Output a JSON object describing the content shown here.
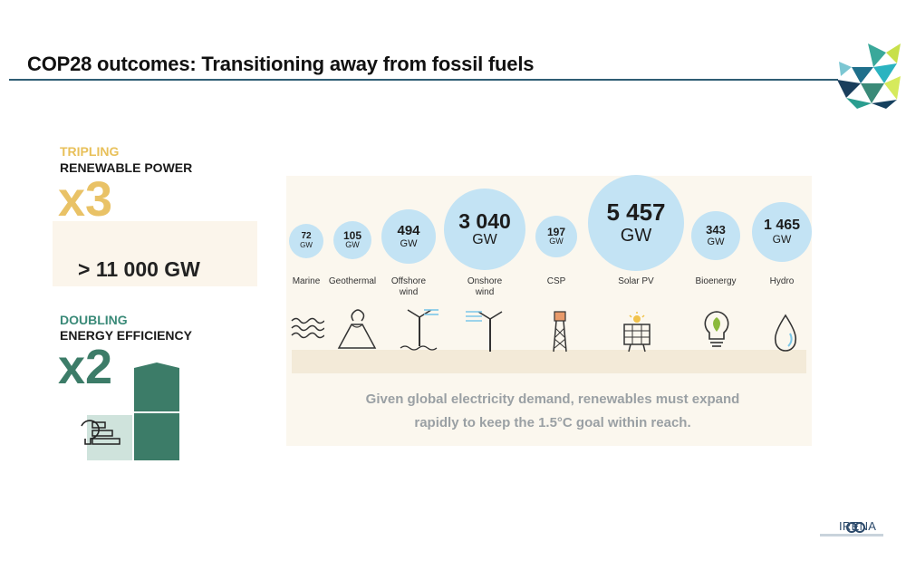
{
  "slide": {
    "title": "COP28 outcomes: Transitioning away from fossil fuels"
  },
  "tripling": {
    "label": "TRIPLING",
    "subtitle": "RENEWABLE POWER",
    "multiplier": "x3",
    "target": "> 11 000 GW"
  },
  "doubling": {
    "label": "DOUBLING",
    "subtitle": "ENERGY EFFICIENCY",
    "multiplier": "x2"
  },
  "technologies": [
    {
      "name": "Marine",
      "value": "72",
      "unit": "GW",
      "icon": "waves-icon"
    },
    {
      "name": "Geothermal",
      "value": "105",
      "unit": "GW",
      "icon": "volcano-icon"
    },
    {
      "name": "Offshore wind",
      "value": "494",
      "unit": "GW",
      "icon": "offshore-wind-turbine-icon"
    },
    {
      "name": "Onshore wind",
      "value": "3 040",
      "unit": "GW",
      "icon": "onshore-wind-turbine-icon"
    },
    {
      "name": "CSP",
      "value": "197",
      "unit": "GW",
      "icon": "solar-tower-icon"
    },
    {
      "name": "Solar PV",
      "value": "5 457",
      "unit": "GW",
      "icon": "solar-panel-icon"
    },
    {
      "name": "Bioenergy",
      "value": "343",
      "unit": "GW",
      "icon": "bioenergy-bulb-icon"
    },
    {
      "name": "Hydro",
      "value": "1 465",
      "unit": "GW",
      "icon": "water-drop-icon"
    }
  ],
  "footnote": {
    "line1": "Given global electricity demand, renewables must expand",
    "line2": "rapidly to keep the 1.5°C goal within reach."
  },
  "brand": {
    "name": "IRENA",
    "accent": "#2f5d74",
    "bubble_color": "#c3e3f4",
    "tripling_color": "#e9c266",
    "doubling_color": "#3c7c68"
  }
}
